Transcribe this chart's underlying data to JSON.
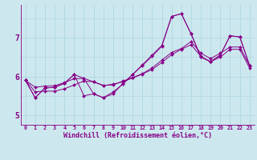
{
  "xlabel": "Windchill (Refroidissement éolien,°C)",
  "background_color": "#cce8ee",
  "line_color": "#880088",
  "grid_color": "#aad4dd",
  "xlim": [
    -0.5,
    23.5
  ],
  "ylim": [
    4.75,
    7.85
  ],
  "yticks": [
    5,
    6,
    7
  ],
  "xtick_labels": [
    "0",
    "1",
    "2",
    "3",
    "4",
    "5",
    "6",
    "7",
    "8",
    "9",
    "10",
    "11",
    "12",
    "13",
    "14",
    "15",
    "16",
    "17",
    "18",
    "19",
    "20",
    "21",
    "22",
    "23"
  ],
  "series": [
    [
      5.9,
      5.45,
      5.7,
      5.72,
      5.82,
      6.05,
      5.5,
      5.55,
      5.45,
      5.6,
      5.8,
      6.05,
      6.3,
      6.55,
      6.8,
      7.55,
      7.62,
      7.1,
      6.5,
      6.38,
      6.55,
      7.05,
      7.02,
      6.28
    ],
    [
      5.9,
      5.72,
      5.75,
      5.76,
      5.84,
      5.94,
      5.95,
      5.86,
      5.77,
      5.78,
      5.88,
      5.97,
      6.07,
      6.22,
      6.42,
      6.62,
      6.72,
      6.9,
      6.6,
      6.46,
      6.6,
      6.76,
      6.76,
      6.28
    ],
    [
      5.9,
      5.6,
      5.62,
      5.62,
      5.68,
      5.78,
      5.88,
      5.86,
      5.76,
      5.8,
      5.86,
      5.96,
      6.06,
      6.18,
      6.36,
      6.56,
      6.7,
      6.82,
      6.52,
      6.38,
      6.5,
      6.7,
      6.7,
      6.22
    ],
    [
      5.9,
      5.45,
      5.7,
      5.72,
      5.82,
      6.05,
      5.95,
      5.55,
      5.45,
      5.55,
      5.82,
      6.05,
      6.28,
      6.52,
      6.78,
      7.55,
      7.62,
      7.1,
      6.5,
      6.38,
      6.55,
      7.05,
      7.02,
      6.28
    ]
  ]
}
